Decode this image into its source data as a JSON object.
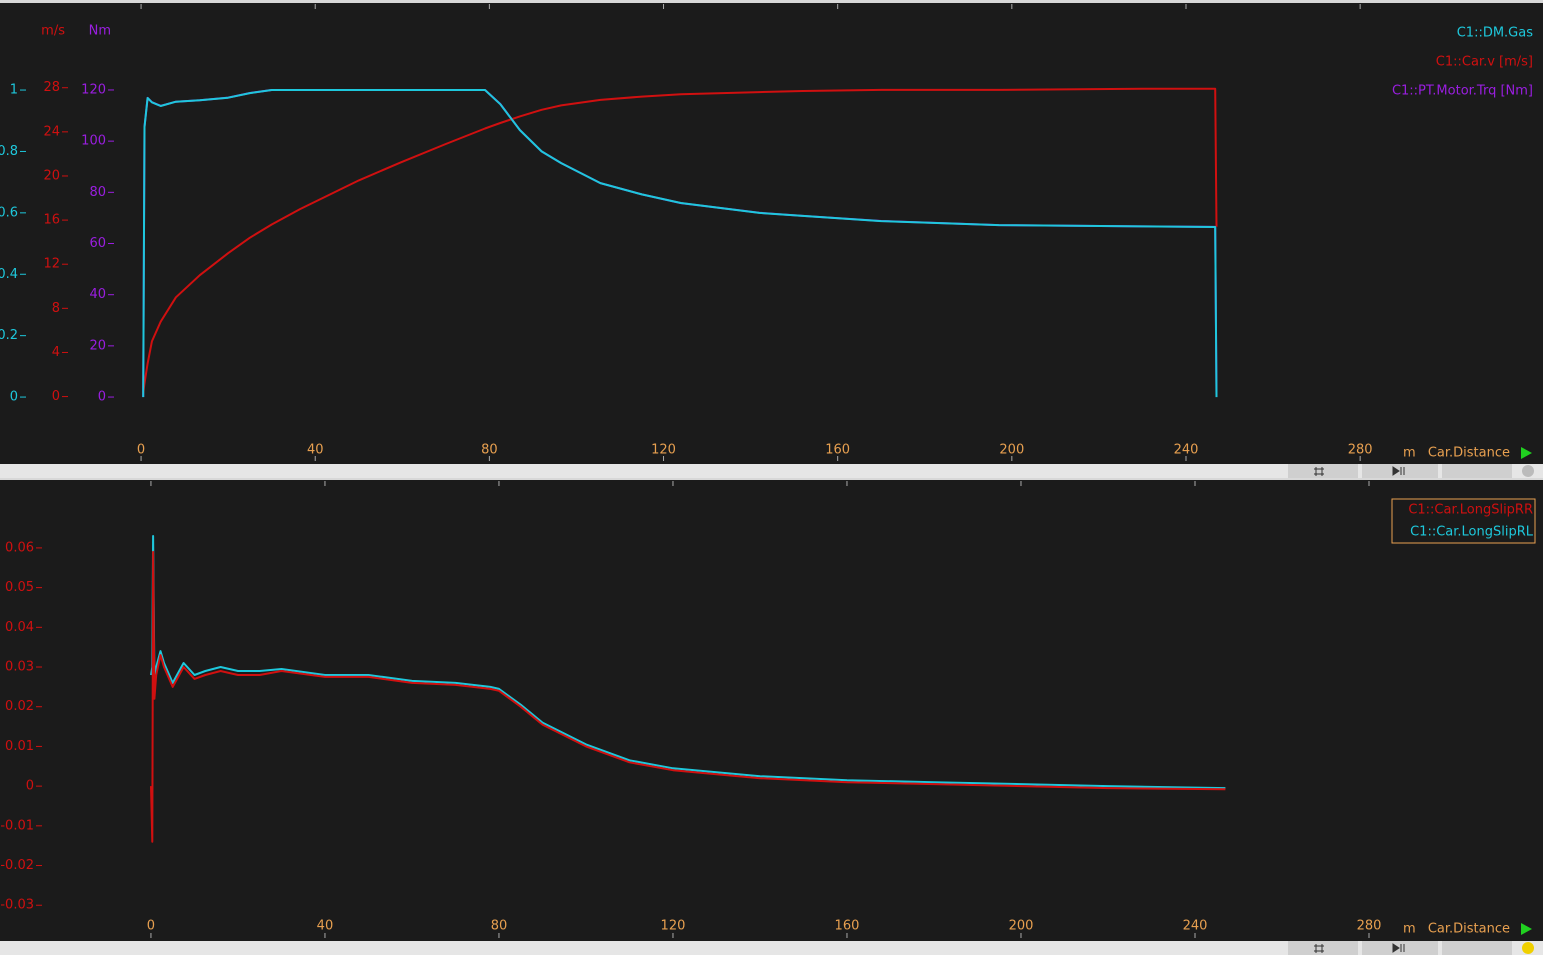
{
  "chart_data": [
    {
      "type": "line",
      "xlabel": "Car.Distance",
      "x_unit": "m",
      "xlim": [
        -32.4,
        322
      ],
      "xticks": [
        0,
        40,
        80,
        120,
        160,
        200,
        240,
        280
      ],
      "ylim": [
        -0.205,
        1.277
      ],
      "yticks": [
        0,
        {
          "value": 0.2,
          "label": "0.2"
        },
        {
          "value": 0.4,
          "label": "0.4"
        },
        {
          "value": 0.6,
          "label": "0.6"
        },
        {
          "value": 0.8,
          "label": "0.8"
        },
        1
      ],
      "y2label": "m/s",
      "y2lim": [
        -5.75,
        35.5
      ],
      "y2ticks": [
        0,
        4,
        8,
        12,
        16,
        20,
        24,
        28
      ],
      "y3label": "Nm",
      "y3lim": [
        -24.6,
        153.2
      ],
      "y3ticks": [
        0,
        20,
        40,
        60,
        80,
        100,
        120
      ],
      "legend": "top-right",
      "x": [
        0.5,
        0.8,
        1.5,
        2.5,
        4.5,
        8,
        13.5,
        20,
        25,
        30,
        36.5,
        50,
        59.5,
        70,
        79,
        82.5,
        87,
        92,
        96.5,
        105.5,
        115,
        124,
        142,
        152,
        170,
        197,
        230,
        246.7,
        247
      ],
      "series": [
        {
          "name": "C1::DM.Gas",
          "color": "#1ec8dc",
          "axis": "y",
          "values": [
            0,
            0.88,
            0.974,
            0.96,
            0.948,
            0.962,
            0.967,
            0.975,
            0.99,
            1.0,
            1.0,
            1.0,
            1.0,
            1.0,
            1.0,
            0.954,
            0.87,
            0.8,
            0.762,
            0.697,
            0.66,
            0.632,
            0.6,
            0.59,
            0.573,
            0.56,
            0.556,
            0.554,
            0
          ]
        },
        {
          "name": "C1::Car.v [m/s]",
          "color": "#d01010",
          "axis": "y2",
          "values": [
            0.3,
            1.2,
            3.0,
            5.0,
            6.8,
            9.0,
            11.0,
            13.0,
            14.4,
            15.6,
            17.0,
            19.6,
            21.2,
            22.9,
            24.3,
            24.8,
            25.4,
            26.0,
            26.4,
            26.9,
            27.2,
            27.4,
            27.6,
            27.7,
            27.8,
            27.8,
            27.9,
            27.9,
            15.4
          ]
        },
        {
          "name": "C1::PT.Motor.Trq [Nm]",
          "color": "#9a1ee0",
          "axis": "y3",
          "values": [
            0,
            105.6,
            116.9,
            115.2,
            113.8,
            115.4,
            116,
            117,
            118.8,
            120,
            120,
            120,
            120,
            120,
            120,
            114.5,
            104.4,
            96,
            91.4,
            83.6,
            79.2,
            75.8,
            72,
            70.8,
            68.8,
            67.2,
            66.7,
            66.5,
            0
          ]
        }
      ]
    },
    {
      "type": "line",
      "xlabel": "Car.Distance",
      "x_unit": "m",
      "xlim": [
        -34.7,
        320
      ],
      "xticks": [
        0,
        40,
        80,
        120,
        160,
        200,
        240,
        280
      ],
      "ylim": [
        -0.038,
        0.0766
      ],
      "yticks": [
        -0.03,
        -0.02,
        -0.01,
        0,
        0.01,
        0.02,
        0.03,
        0.04,
        0.05,
        0.06
      ],
      "legend": "top-right",
      "x": [
        0,
        0.3,
        0.5,
        0.8,
        1.2,
        2.2,
        3,
        5,
        7.5,
        10,
        12.5,
        16,
        20,
        25,
        30,
        40,
        50,
        60,
        70,
        78,
        80,
        85,
        90,
        100,
        110,
        120,
        140,
        160,
        180,
        200,
        220,
        247
      ],
      "series": [
        {
          "name": "C1::Car.LongSlipRR",
          "color": "#d01010",
          "values": [
            0,
            -0.014,
            0.059,
            0.022,
            0.028,
            0.033,
            0.03,
            0.025,
            0.03,
            0.027,
            0.028,
            0.029,
            0.028,
            0.028,
            0.029,
            0.0275,
            0.0275,
            0.026,
            0.0255,
            0.0245,
            0.024,
            0.02,
            0.0155,
            0.01,
            0.006,
            0.004,
            0.002,
            0.001,
            0.0005,
            0.0,
            -0.0005,
            -0.0008
          ]
        },
        {
          "name": "C1::Car.LongSlipRL",
          "color": "#1ec8dc",
          "values": [
            0.028,
            0.03,
            0.063,
            0.027,
            0.03,
            0.034,
            0.031,
            0.026,
            0.031,
            0.028,
            0.029,
            0.03,
            0.029,
            0.029,
            0.0295,
            0.028,
            0.028,
            0.0265,
            0.026,
            0.025,
            0.0245,
            0.0205,
            0.016,
            0.0105,
            0.0065,
            0.0045,
            0.0025,
            0.0015,
            0.001,
            0.0005,
            0.0,
            -0.0005
          ]
        }
      ]
    }
  ]
}
